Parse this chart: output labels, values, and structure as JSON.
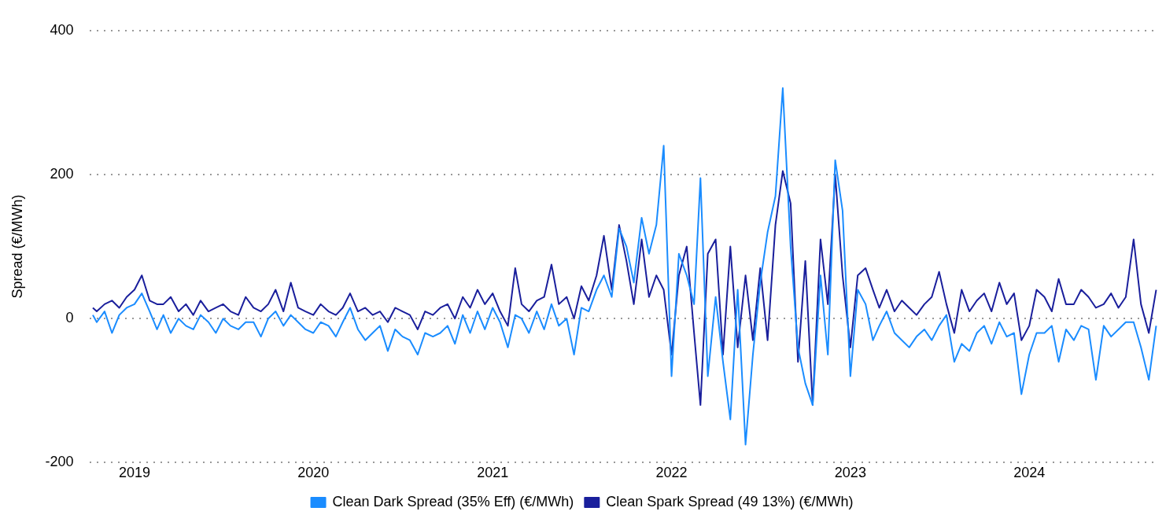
{
  "chart_data": {
    "type": "line",
    "ylabel": "Spread (€/MWh)",
    "xlim": [
      "2018-10-01",
      "2024-09-20"
    ],
    "ylim": [
      -200,
      400
    ],
    "yticks": [
      -200,
      0,
      200,
      400
    ],
    "xticks": [
      {
        "value": "2019-01-01",
        "label": "2019"
      },
      {
        "value": "2020-01-01",
        "label": "2020"
      },
      {
        "value": "2021-01-01",
        "label": "2021"
      },
      {
        "value": "2022-01-01",
        "label": "2022"
      },
      {
        "value": "2023-01-01",
        "label": "2023"
      },
      {
        "value": "2024-01-01",
        "label": "2024"
      }
    ],
    "grid": "y",
    "legend": "bottom",
    "marker": "none",
    "line_style": "solid",
    "x": [
      "2018-10-08",
      "2018-10-16",
      "2018-11-01",
      "2018-11-16",
      "2018-12-01",
      "2018-12-16",
      "2019-01-01",
      "2019-01-16",
      "2019-02-01",
      "2019-02-16",
      "2019-03-01",
      "2019-03-16",
      "2019-04-01",
      "2019-04-16",
      "2019-05-01",
      "2019-05-16",
      "2019-06-01",
      "2019-06-16",
      "2019-07-01",
      "2019-07-16",
      "2019-08-01",
      "2019-08-16",
      "2019-09-01",
      "2019-09-16",
      "2019-10-01",
      "2019-10-16",
      "2019-11-01",
      "2019-11-16",
      "2019-12-01",
      "2019-12-16",
      "2020-01-01",
      "2020-01-16",
      "2020-02-01",
      "2020-02-16",
      "2020-03-01",
      "2020-03-16",
      "2020-04-01",
      "2020-04-16",
      "2020-05-01",
      "2020-05-16",
      "2020-06-01",
      "2020-06-16",
      "2020-07-01",
      "2020-07-16",
      "2020-08-01",
      "2020-08-16",
      "2020-09-01",
      "2020-09-16",
      "2020-10-01",
      "2020-10-16",
      "2020-11-01",
      "2020-11-16",
      "2020-12-01",
      "2020-12-16",
      "2021-01-01",
      "2021-01-16",
      "2021-02-01",
      "2021-02-16",
      "2021-03-01",
      "2021-03-16",
      "2021-04-01",
      "2021-04-16",
      "2021-05-01",
      "2021-05-16",
      "2021-06-01",
      "2021-06-16",
      "2021-07-01",
      "2021-07-16",
      "2021-08-01",
      "2021-08-16",
      "2021-09-01",
      "2021-09-16",
      "2021-10-01",
      "2021-10-16",
      "2021-11-01",
      "2021-11-16",
      "2021-12-01",
      "2021-12-16",
      "2022-01-01",
      "2022-01-16",
      "2022-02-01",
      "2022-02-16",
      "2022-03-01",
      "2022-03-16",
      "2022-04-01",
      "2022-04-16",
      "2022-05-01",
      "2022-05-16",
      "2022-06-01",
      "2022-06-16",
      "2022-07-01",
      "2022-07-16",
      "2022-08-01",
      "2022-08-16",
      "2022-09-01",
      "2022-09-16",
      "2022-10-01",
      "2022-10-16",
      "2022-11-01",
      "2022-11-16",
      "2022-12-01",
      "2022-12-16",
      "2023-01-01",
      "2023-01-16",
      "2023-02-01",
      "2023-02-16",
      "2023-03-01",
      "2023-03-16",
      "2023-04-01",
      "2023-04-16",
      "2023-05-01",
      "2023-05-16",
      "2023-06-01",
      "2023-06-16",
      "2023-07-01",
      "2023-07-16",
      "2023-08-01",
      "2023-08-16",
      "2023-09-01",
      "2023-09-16",
      "2023-10-01",
      "2023-10-16",
      "2023-11-01",
      "2023-11-16",
      "2023-12-01",
      "2023-12-16",
      "2024-01-01",
      "2024-01-16",
      "2024-02-01",
      "2024-02-16",
      "2024-03-01",
      "2024-03-16",
      "2024-04-01",
      "2024-04-16",
      "2024-05-01",
      "2024-05-16",
      "2024-06-01",
      "2024-06-16",
      "2024-07-01",
      "2024-07-16",
      "2024-08-01",
      "2024-08-16",
      "2024-09-01",
      "2024-09-16"
    ],
    "series": [
      {
        "name": "Clean Dark Spread (35% Eff) (€/MWh)",
        "color": "#1a8cff",
        "values": [
          5,
          -5,
          10,
          -20,
          5,
          15,
          20,
          35,
          10,
          -15,
          5,
          -20,
          0,
          -10,
          -15,
          5,
          -5,
          -20,
          0,
          -10,
          -15,
          -5,
          -5,
          -25,
          0,
          10,
          -10,
          5,
          -5,
          -15,
          -20,
          -5,
          -10,
          -25,
          -5,
          15,
          -15,
          -30,
          -20,
          -10,
          -45,
          -15,
          -25,
          -30,
          -50,
          -20,
          -25,
          -20,
          -10,
          -35,
          5,
          -20,
          10,
          -15,
          15,
          -5,
          -40,
          5,
          0,
          -20,
          10,
          -15,
          20,
          -10,
          0,
          -50,
          15,
          10,
          40,
          60,
          30,
          125,
          100,
          50,
          140,
          90,
          130,
          240,
          -80,
          90,
          60,
          20,
          195,
          -80,
          30,
          -60,
          -140,
          40,
          -175,
          -50,
          50,
          120,
          170,
          320,
          100,
          -40,
          -90,
          -120,
          60,
          -50,
          220,
          150,
          -80,
          40,
          20,
          -30,
          -10,
          10,
          -20,
          -30,
          -40,
          -25,
          -15,
          -30,
          -10,
          5,
          -60,
          -35,
          -45,
          -20,
          -10,
          -35,
          -5,
          -25,
          -20,
          -105,
          -50,
          -20,
          -20,
          -10,
          -60,
          -15,
          -30,
          -10,
          -15,
          -85,
          -10,
          -25,
          -15,
          -5,
          -5,
          -40,
          -85,
          -10
        ]
      },
      {
        "name": "Clean Spark Spread (49 13%) (€/MWh)",
        "color": "#1a1f9c",
        "values": [
          15,
          10,
          20,
          25,
          15,
          30,
          40,
          60,
          25,
          20,
          20,
          30,
          10,
          20,
          5,
          25,
          10,
          15,
          20,
          10,
          5,
          30,
          15,
          10,
          20,
          40,
          10,
          50,
          15,
          10,
          5,
          20,
          10,
          5,
          15,
          35,
          10,
          15,
          5,
          10,
          -5,
          15,
          10,
          5,
          -15,
          10,
          5,
          15,
          20,
          0,
          30,
          15,
          40,
          20,
          35,
          10,
          -10,
          70,
          20,
          10,
          25,
          30,
          75,
          20,
          30,
          0,
          45,
          25,
          60,
          115,
          40,
          130,
          80,
          20,
          110,
          30,
          60,
          40,
          -50,
          60,
          100,
          -20,
          -120,
          90,
          110,
          -50,
          100,
          -40,
          60,
          -30,
          70,
          -30,
          130,
          205,
          160,
          -60,
          80,
          -120,
          110,
          20,
          200,
          60,
          -40,
          60,
          70,
          40,
          15,
          40,
          10,
          25,
          15,
          5,
          20,
          30,
          65,
          20,
          -20,
          40,
          10,
          25,
          35,
          10,
          50,
          20,
          35,
          -30,
          -10,
          40,
          30,
          10,
          55,
          20,
          20,
          40,
          30,
          15,
          20,
          35,
          15,
          30,
          110,
          20,
          -20,
          40
        ]
      }
    ]
  }
}
